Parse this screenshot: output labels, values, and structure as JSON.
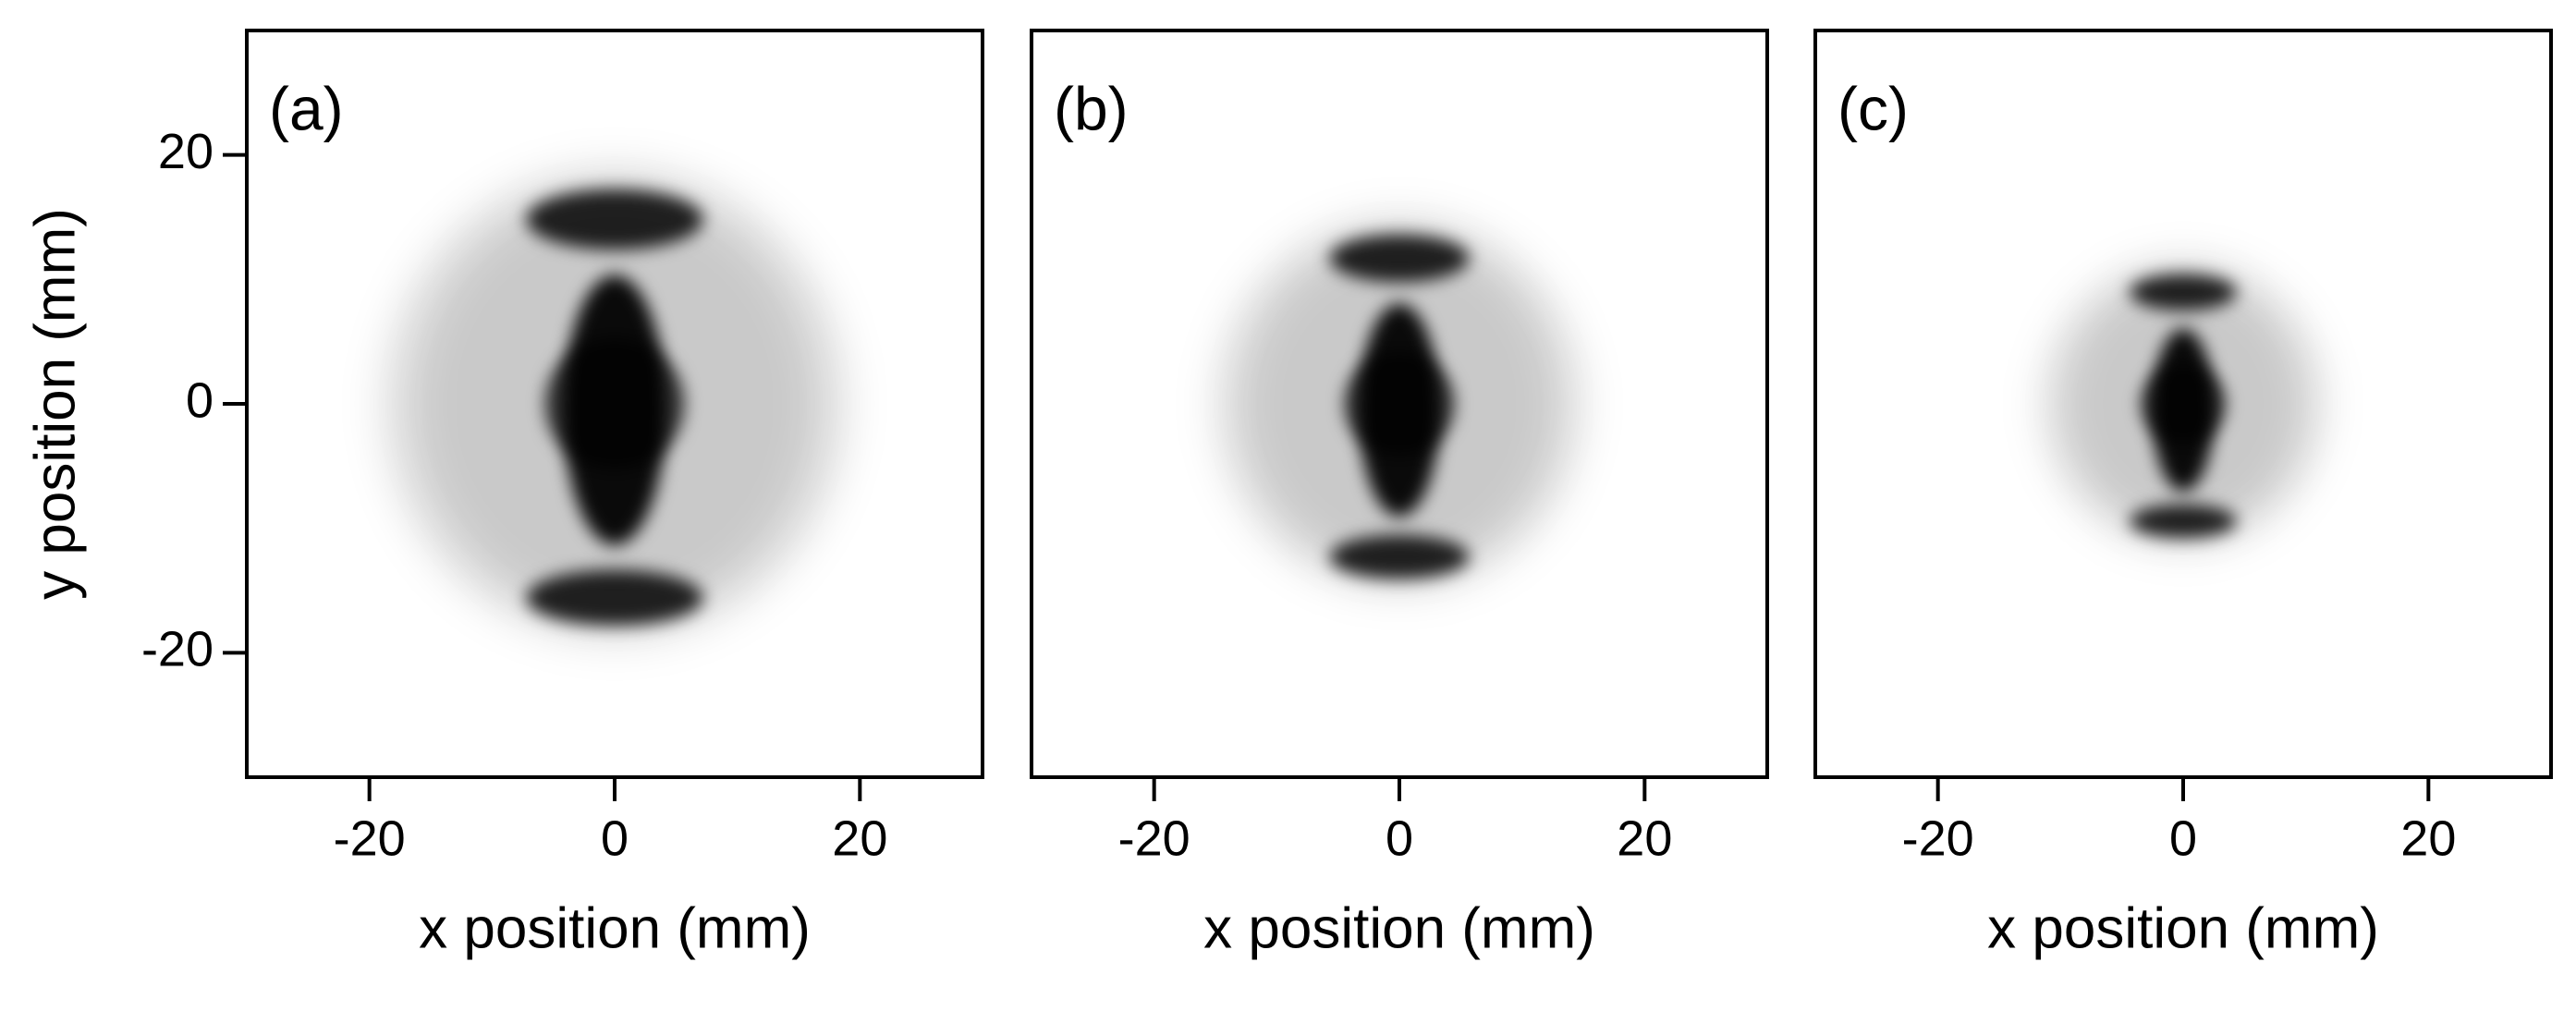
{
  "chart_data": [
    {
      "type": "image",
      "label": "(a)",
      "xlabel": "x position (mm)",
      "ylabel": "y position (mm)",
      "xlim": [
        -30,
        30
      ],
      "ylim": [
        -30,
        30
      ],
      "xticks": [
        -20,
        0,
        20
      ],
      "yticks": [
        -20,
        0,
        20
      ]
    },
    {
      "type": "image",
      "label": "(b)",
      "xlabel": "x position (mm)",
      "xlim": [
        -30,
        30
      ],
      "ylim": [
        -30,
        30
      ],
      "xticks": [
        -20,
        0,
        20
      ]
    },
    {
      "type": "image",
      "label": "(c)",
      "xlabel": "x position (mm)",
      "xlim": [
        -30,
        30
      ],
      "ylim": [
        -30,
        30
      ],
      "xticks": [
        -20,
        0,
        20
      ]
    }
  ]
}
